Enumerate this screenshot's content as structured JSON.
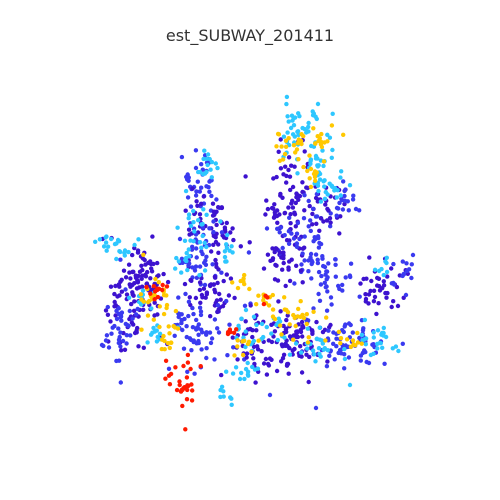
{
  "title": "est_SUBWAY_201411",
  "colors": {
    "dark_blue": "#3d12cf",
    "medium_blue": "#3a3af0",
    "cyan": "#2ec7ff",
    "yellow": "#ffc800",
    "red": "#ff1a00"
  }
}
